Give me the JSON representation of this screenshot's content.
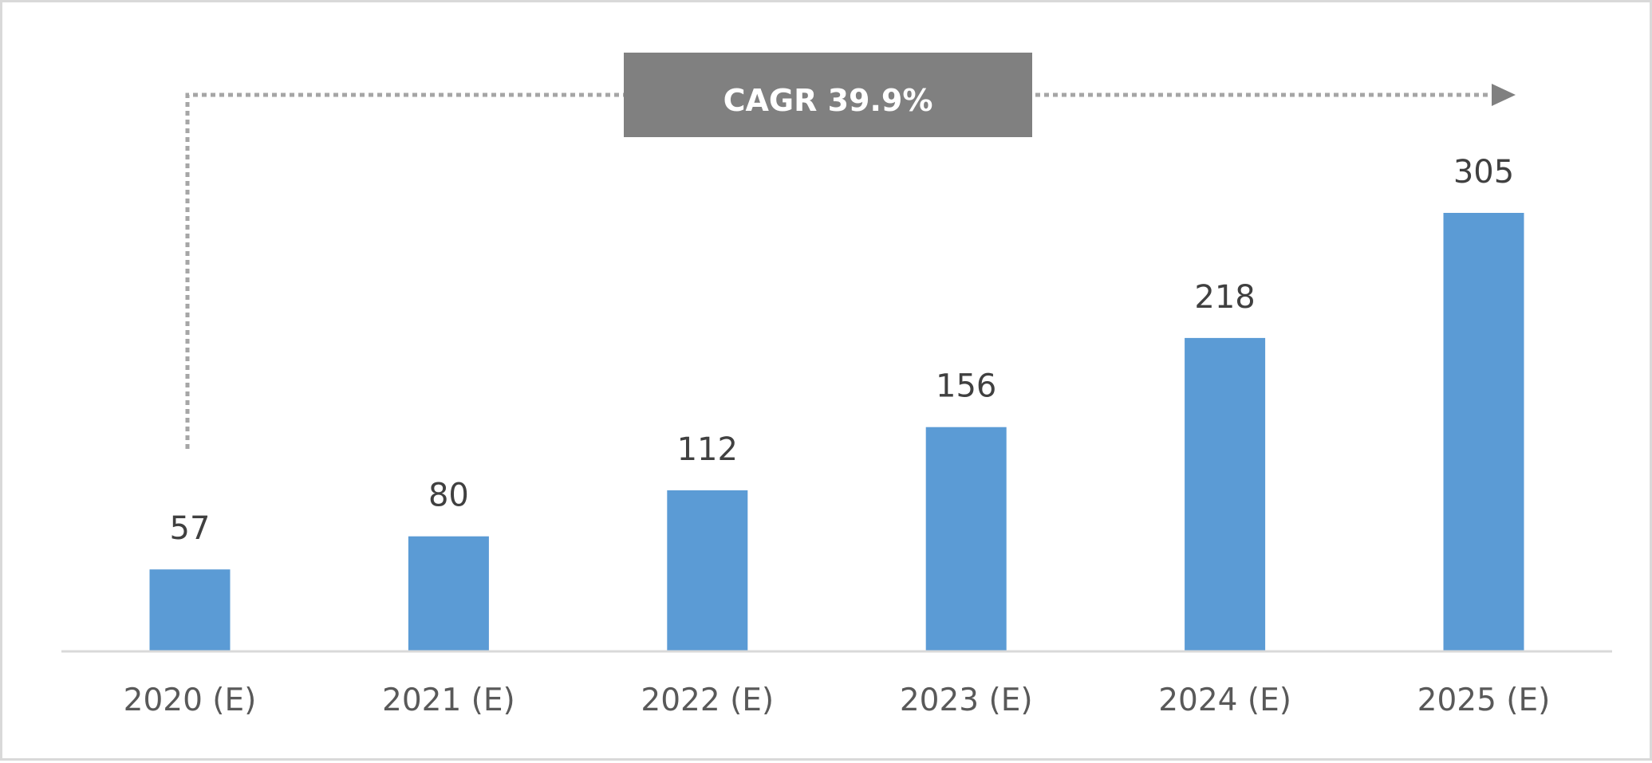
{
  "chart_data": {
    "type": "bar",
    "categories": [
      "2020 (E)",
      "2021 (E)",
      "2022 (E)",
      "2023 (E)",
      "2024 (E)",
      "2025 (E)"
    ],
    "values": [
      57,
      80,
      112,
      156,
      218,
      305
    ],
    "data_labels": [
      "57",
      "80",
      "112",
      "156",
      "218",
      "305"
    ],
    "title": "",
    "xlabel": "",
    "ylabel": "",
    "ylim": [
      0,
      305
    ],
    "grid": false,
    "legend": "none",
    "bar_color": "#5b9bd5",
    "annotation": {
      "text": "CAGR 39.9%",
      "box_color": "#808080",
      "arrow_color": "#808080",
      "from_category": "2020 (E)",
      "to_category": "2025 (E)"
    }
  }
}
